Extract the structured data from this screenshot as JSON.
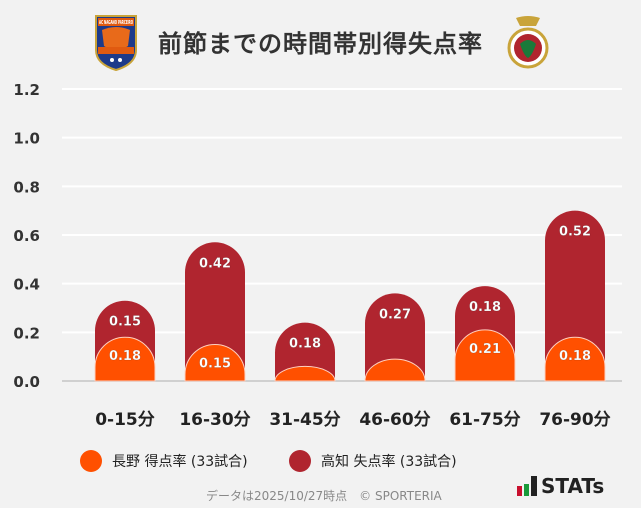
{
  "title": "前節までの時間帯別得失点率",
  "home_logo_text": "AC NAGANO PARCEIRO",
  "chart_data": {
    "type": "bar",
    "stacked": true,
    "categories": [
      "0-15分",
      "16-30分",
      "31-45分",
      "46-60分",
      "61-75分",
      "76-90分"
    ],
    "series": [
      {
        "name": "長野 得点率 (33試合)",
        "color": "#ff5000",
        "values": [
          0.18,
          0.15,
          0.06,
          0.09,
          0.21,
          0.18
        ],
        "labels": [
          "0.18",
          "0.15",
          "",
          "",
          "0.21",
          "0.18"
        ]
      },
      {
        "name": "高知 失点率 (33試合)",
        "color": "#b0252f",
        "values": [
          0.15,
          0.42,
          0.18,
          0.27,
          0.18,
          0.52
        ],
        "labels": [
          "0.15",
          "0.42",
          "0.18",
          "0.27",
          "0.18",
          "0.52"
        ]
      }
    ],
    "yticks": [
      "0.0",
      "0.2",
      "0.4",
      "0.6",
      "0.8",
      "1.0",
      "1.2"
    ],
    "ylim": [
      0,
      1.2
    ],
    "grid": true,
    "legend": "bottom"
  },
  "footer": "データは2025/10/27時点　© SPORTERIA",
  "brand": "STATs"
}
